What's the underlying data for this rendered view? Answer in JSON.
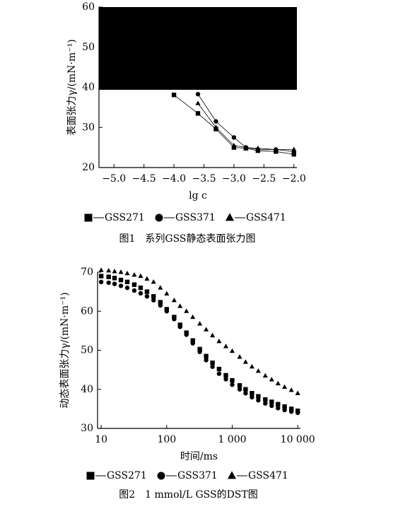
{
  "chart_data": [
    {
      "type": "line",
      "title": "图1　系列GSS静态表面张力图",
      "x_label": "lg c",
      "y_label": "表面张力γ/(mN·m⁻¹)",
      "xlim": [
        -5.25,
        -1.95
      ],
      "ylim": [
        20,
        60
      ],
      "xticks": [
        {
          "value": -5.0,
          "label": "−5.0"
        },
        {
          "value": -4.5,
          "label": "−4.5"
        },
        {
          "value": -4.0,
          "label": "−4.0"
        },
        {
          "value": -3.5,
          "label": "−3.5"
        },
        {
          "value": -3.0,
          "label": "−3.0"
        },
        {
          "value": -2.5,
          "label": "−2.5"
        },
        {
          "value": -2.0,
          "label": "−2.0"
        }
      ],
      "yticks": [
        20,
        30,
        40,
        50,
        60
      ],
      "series": [
        {
          "name": "GSS271",
          "marker": "square",
          "color": "#000000",
          "x": [
            -4.0,
            -3.6,
            -3.3,
            -3.0,
            -2.8,
            -2.6,
            -2.3,
            -2.0
          ],
          "values": [
            38.1,
            33.5,
            29.6,
            25,
            24.8,
            24.2,
            24,
            23.3
          ]
        },
        {
          "name": "GSS371",
          "marker": "circle",
          "color": "#000000",
          "x": [
            -3.6,
            -3.3,
            -3.0,
            -2.8,
            -2.6,
            -2.3,
            -2.0
          ],
          "values": [
            38.3,
            31.5,
            27.5,
            25,
            24.5,
            24.5,
            24
          ]
        },
        {
          "name": "GSS471",
          "marker": "triangle",
          "color": "#000000",
          "x": [
            -3.6,
            -3.3,
            -3.0,
            -2.8,
            -2.6,
            -2.3,
            -2.0
          ],
          "values": [
            36,
            30,
            25.5,
            25,
            24.8,
            24.5,
            24.5
          ]
        }
      ]
    },
    {
      "type": "scatter",
      "title": "图2　1 mmol/L GSS的DST图",
      "x_label": "时间/ms",
      "y_label": "动态表面张力γ/(mN·m⁻¹)",
      "log_x": true,
      "xlim": [
        8.8,
        11000
      ],
      "ylim": [
        30,
        70
      ],
      "xticks": [
        10,
        100,
        {
          "value": 1000,
          "label": "1 000"
        },
        {
          "value": 10000,
          "label": "10 000"
        }
      ],
      "yticks": [
        30,
        40,
        50,
        60,
        70
      ],
      "x": [
        10,
        13,
        16,
        20,
        25,
        32,
        40,
        50,
        63,
        80,
        100,
        130,
        160,
        200,
        250,
        320,
        400,
        500,
        630,
        800,
        1000,
        1300,
        1600,
        2000,
        2500,
        3200,
        4000,
        5000,
        6300,
        8000,
        10000
      ],
      "series": [
        {
          "name": "GSS271",
          "marker": "square",
          "color": "#000000",
          "values": [
            69,
            68.8,
            68.5,
            68,
            67.5,
            66.8,
            66,
            65,
            63.8,
            62.3,
            60.5,
            58.5,
            56.5,
            54.5,
            52.5,
            50.3,
            48.5,
            46.8,
            45.2,
            43.6,
            42.3,
            41,
            40,
            39,
            38.2,
            37.4,
            36.8,
            36.2,
            35.6,
            35,
            34.5
          ]
        },
        {
          "name": "GSS371",
          "marker": "circle",
          "color": "#000000",
          "values": [
            67.5,
            67.3,
            67,
            66.5,
            66,
            65.3,
            64.6,
            63.8,
            62.8,
            61.5,
            60,
            58,
            56,
            54,
            51.8,
            49.6,
            47.5,
            45.8,
            44,
            42.6,
            41.2,
            40,
            39,
            38,
            37.2,
            36.4,
            35.8,
            35.2,
            34.7,
            34.3,
            34
          ]
        },
        {
          "name": "GSS471",
          "marker": "triangle",
          "color": "#000000",
          "values": [
            70.5,
            70.4,
            70.2,
            70,
            69.7,
            69.3,
            69,
            68.3,
            67.5,
            66,
            64.5,
            62.8,
            61.3,
            60,
            58.5,
            56.8,
            55.3,
            53.8,
            52.3,
            51,
            49.8,
            48.3,
            47,
            45.8,
            44.7,
            43.5,
            42.5,
            41.5,
            40.6,
            39.8,
            39
          ]
        }
      ]
    }
  ]
}
